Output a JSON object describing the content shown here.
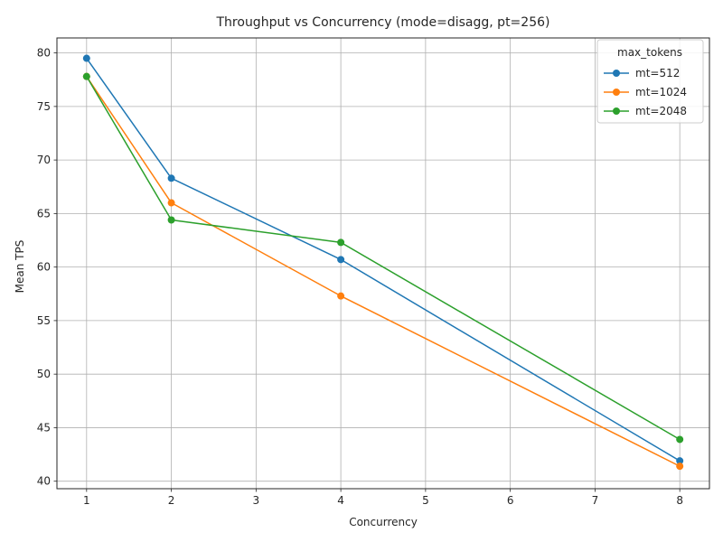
{
  "chart_data": {
    "type": "line",
    "title": "Throughput vs Concurrency (mode=disagg, pt=256)",
    "xlabel": "Concurrency",
    "ylabel": "Mean TPS",
    "xlim": [
      0.65,
      8.35
    ],
    "ylim": [
      39.3,
      81.4
    ],
    "xticks": [
      1,
      2,
      3,
      4,
      5,
      6,
      7,
      8
    ],
    "yticks": [
      40,
      45,
      50,
      55,
      60,
      65,
      70,
      75,
      80
    ],
    "grid": true,
    "legend": {
      "title": "max_tokens",
      "placement": "top-right"
    },
    "series": [
      {
        "name": "mt=512",
        "color": "#1f77b4",
        "x": [
          1,
          2,
          4,
          8
        ],
        "values": [
          79.5,
          68.3,
          60.7,
          41.9
        ]
      },
      {
        "name": "mt=1024",
        "color": "#ff7f0e",
        "x": [
          1,
          2,
          4,
          8
        ],
        "values": [
          77.8,
          66.0,
          57.3,
          41.4
        ]
      },
      {
        "name": "mt=2048",
        "color": "#2ca02c",
        "x": [
          1,
          2,
          4,
          8
        ],
        "values": [
          77.8,
          64.4,
          62.3,
          43.9
        ]
      }
    ]
  }
}
